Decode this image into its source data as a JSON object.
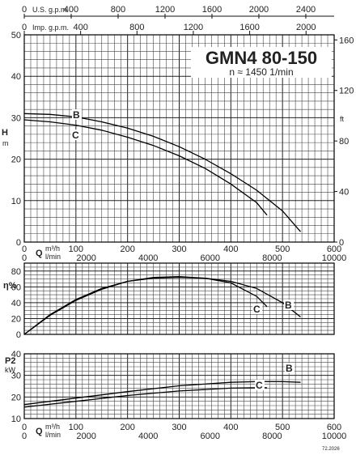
{
  "header": {
    "model": "GMN4 80-150",
    "speed": "n ≈ 1450 1/min",
    "code": "72.2026"
  },
  "axes": {
    "usgpm_label": "U.S. g.p.m.",
    "impgpm_label": "Imp. g.p.m.",
    "usgpm_ticks": [
      "0",
      "400",
      "800",
      "1200",
      "1600",
      "2000",
      "2400"
    ],
    "impgpm_ticks": [
      "0",
      "400",
      "800",
      "1200",
      "1600",
      "2000"
    ],
    "q_label": "Q",
    "q_unit_m3h": "m³/h",
    "q_unit_lmin": "l/min",
    "q_m3h_ticks": [
      "0",
      "100",
      "200",
      "300",
      "400",
      "500",
      "600"
    ],
    "q_lmin_ticks": [
      "0",
      "2000",
      "4000",
      "6000",
      "8000",
      "10000"
    ],
    "h_label": "H",
    "h_unit": "m",
    "h_ticks": [
      "0",
      "10",
      "20",
      "30",
      "40",
      "50"
    ],
    "ft_label": "ft",
    "ft_ticks": [
      "0",
      "40",
      "80",
      "120",
      "160"
    ],
    "eta_label": "η%",
    "eta_ticks": [
      "0",
      "20",
      "40",
      "60",
      "80"
    ],
    "p2_label": "P2",
    "p2_unit": "kW",
    "p2_ticks": [
      "10",
      "20",
      "30",
      "40"
    ]
  },
  "chart_data": [
    {
      "type": "line",
      "title": "GMN4 80-150",
      "xlabel": "Q m³/h",
      "ylabel": "H m",
      "xlim": [
        0,
        600
      ],
      "ylim": [
        0,
        50
      ],
      "series": [
        {
          "name": "B",
          "x": [
            0,
            50,
            100,
            150,
            200,
            250,
            300,
            350,
            400,
            450,
            500,
            535
          ],
          "y": [
            31,
            30.8,
            30.2,
            29,
            27.5,
            25.5,
            23,
            20,
            16.5,
            12.5,
            7.5,
            2.5
          ]
        },
        {
          "name": "C",
          "x": [
            0,
            50,
            100,
            150,
            200,
            250,
            300,
            350,
            400,
            450,
            470
          ],
          "y": [
            29.5,
            29,
            28.2,
            27,
            25.3,
            23.3,
            20.8,
            17.8,
            14,
            9.5,
            6.5
          ]
        }
      ]
    },
    {
      "type": "line",
      "xlabel": "Q m³/h",
      "ylabel": "η%",
      "xlim": [
        0,
        600
      ],
      "ylim": [
        0,
        90
      ],
      "series": [
        {
          "name": "B",
          "x": [
            0,
            50,
            100,
            150,
            200,
            250,
            300,
            350,
            400,
            450,
            500,
            535
          ],
          "y": [
            0,
            25,
            44,
            58,
            67,
            71,
            72,
            71,
            67,
            58,
            40,
            22
          ]
        },
        {
          "name": "C",
          "x": [
            0,
            50,
            100,
            150,
            200,
            250,
            300,
            350,
            400,
            450,
            470
          ],
          "y": [
            0,
            24,
            43,
            57,
            67,
            72,
            73,
            71,
            65,
            48,
            35
          ]
        }
      ]
    },
    {
      "type": "line",
      "xlabel": "Q m³/h",
      "ylabel": "P2 kW",
      "xlim": [
        0,
        600
      ],
      "ylim": [
        10,
        40
      ],
      "series": [
        {
          "name": "B",
          "x": [
            0,
            100,
            200,
            300,
            400,
            450,
            500,
            535
          ],
          "y": [
            16.5,
            19.5,
            22.5,
            25.2,
            26.8,
            27.1,
            27.1,
            26.8
          ]
        },
        {
          "name": "C",
          "x": [
            0,
            100,
            200,
            300,
            400,
            450,
            470
          ],
          "y": [
            15.3,
            18,
            20.7,
            22.8,
            24.1,
            24.3,
            24.3
          ]
        }
      ]
    }
  ]
}
